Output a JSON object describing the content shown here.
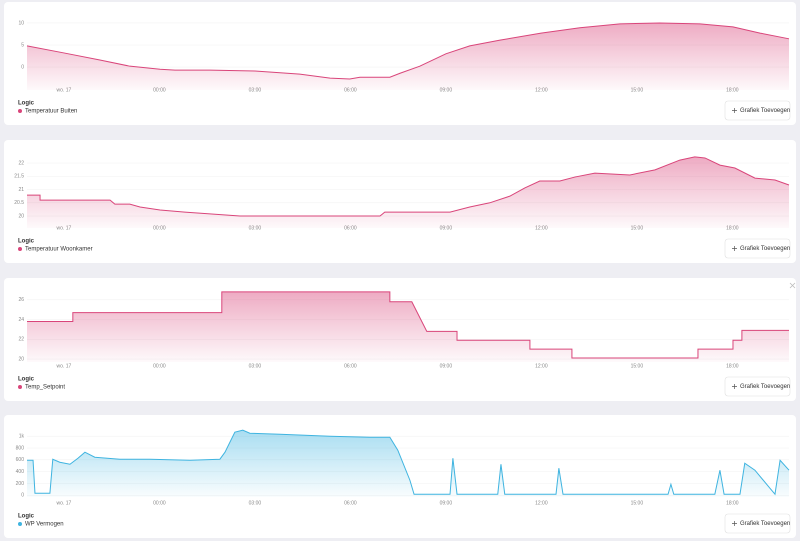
{
  "chart_data": [
    {
      "type": "area",
      "legend_title": "Logic",
      "button": "Grafiek Toevoegen",
      "grid": true,
      "xlim": [
        -1.16,
        22.78
      ],
      "ylim": [
        -5.2,
        11.8
      ],
      "xticks": [
        {
          "value": 0,
          "label": "wo. 17"
        },
        {
          "value": 3,
          "label": "00:00"
        },
        {
          "value": 6,
          "label": "03:00"
        },
        {
          "value": 9,
          "label": "06:00"
        },
        {
          "value": 12,
          "label": "09:00"
        },
        {
          "value": 15,
          "label": "12:00"
        },
        {
          "value": 18,
          "label": "15:00"
        },
        {
          "value": 21,
          "label": "18:00"
        }
      ],
      "yticks": [
        0,
        5,
        10
      ],
      "x": [
        -1.16,
        0,
        1.13,
        2.07,
        3.02,
        3.49,
        4.59,
        6,
        7.41,
        8.36,
        8.98,
        9.3,
        10.24,
        10.56,
        11.18,
        12,
        12.75,
        13.7,
        14.99,
        16.21,
        17.47,
        18.72,
        19.98,
        21.02,
        21.87,
        22.78
      ],
      "series": [
        {
          "name": "Temperatuur Buiten",
          "color": "#d9457a",
          "values": [
            4.8,
            3.2,
            1.6,
            0.2,
            -0.5,
            -0.7,
            -0.7,
            -0.9,
            -1.6,
            -2.5,
            -2.7,
            -2.3,
            -2.3,
            -1.4,
            0.2,
            3,
            4.8,
            6.1,
            7.7,
            8.9,
            9.8,
            10,
            9.8,
            9.1,
            7.7,
            6.4
          ]
        }
      ]
    },
    {
      "type": "area",
      "legend_title": "Logic",
      "button": "Grafiek Toevoegen",
      "grid": true,
      "xlim": [
        -1.16,
        22.78
      ],
      "ylim": [
        19.55,
        22.49
      ],
      "xticks": [
        {
          "value": 0,
          "label": "wo. 17"
        },
        {
          "value": 3,
          "label": "00:00"
        },
        {
          "value": 6,
          "label": "03:00"
        },
        {
          "value": 9,
          "label": "06:00"
        },
        {
          "value": 12,
          "label": "09:00"
        },
        {
          "value": 15,
          "label": "12:00"
        },
        {
          "value": 18,
          "label": "15:00"
        },
        {
          "value": 21,
          "label": "18:00"
        }
      ],
      "yticks": [
        20,
        20.5,
        21,
        21.5,
        22
      ],
      "x": [
        -1.16,
        -0.75,
        -0.75,
        1.45,
        1.6,
        2.07,
        2.39,
        3.02,
        3.8,
        5.53,
        9.93,
        10.08,
        12.13,
        12.75,
        13.38,
        14.01,
        14.48,
        14.95,
        15.58,
        16.05,
        16.68,
        17.78,
        18.57,
        19.35,
        19.82,
        20.14,
        20.61,
        21.08,
        21.71,
        22.34,
        22.78
      ],
      "series": [
        {
          "name": "Temperatuur Woonkamer",
          "color": "#d9457a",
          "values": [
            20.79,
            20.79,
            20.6,
            20.6,
            20.45,
            20.45,
            20.34,
            20.23,
            20.15,
            20,
            20,
            20.15,
            20.15,
            20.34,
            20.5,
            20.75,
            21.06,
            21.32,
            21.32,
            21.47,
            21.62,
            21.55,
            21.74,
            22.11,
            22.23,
            22.19,
            21.92,
            21.81,
            21.43,
            21.36,
            21.17
          ]
        }
      ]
    },
    {
      "type": "area",
      "legend_title": "Logic",
      "button": "Grafiek Toevoegen",
      "grid": true,
      "xlim": [
        -1.16,
        22.78
      ],
      "ylim": [
        19.7,
        27.5
      ],
      "xticks": [
        {
          "value": 0,
          "label": "wo. 17"
        },
        {
          "value": 3,
          "label": "00:00"
        },
        {
          "value": 6,
          "label": "03:00"
        },
        {
          "value": 9,
          "label": "06:00"
        },
        {
          "value": 12,
          "label": "09:00"
        },
        {
          "value": 15,
          "label": "12:00"
        },
        {
          "value": 18,
          "label": "15:00"
        },
        {
          "value": 21,
          "label": "18:00"
        }
      ],
      "yticks": [
        20,
        22,
        24,
        26
      ],
      "x": [
        -1.16,
        0.28,
        0.28,
        4.96,
        4.96,
        10.24,
        10.24,
        10.93,
        11.4,
        12.35,
        12.35,
        14.64,
        14.64,
        15.96,
        15.96,
        19.92,
        19.92,
        21.02,
        21.02,
        21.3,
        21.3,
        22.78
      ],
      "series": [
        {
          "name": "Temp_Setpoint",
          "color": "#d9457a",
          "values": [
            23.8,
            23.8,
            24.7,
            24.7,
            26.8,
            26.8,
            25.8,
            25.8,
            22.8,
            22.8,
            21.9,
            21.9,
            21,
            21,
            20.1,
            20.1,
            21,
            21,
            21.9,
            21.9,
            22.9,
            22.9
          ]
        }
      ]
    },
    {
      "type": "area",
      "legend_title": "Logic",
      "button": "Grafiek Toevoegen",
      "grid": true,
      "xlim": [
        -1.16,
        22.78
      ],
      "ylim": [
        -30,
        1190
      ],
      "xticks": [
        {
          "value": 0,
          "label": "wo. 17"
        },
        {
          "value": 3,
          "label": "00:00"
        },
        {
          "value": 6,
          "label": "03:00"
        },
        {
          "value": 9,
          "label": "06:00"
        },
        {
          "value": 12,
          "label": "09:00"
        },
        {
          "value": 15,
          "label": "12:00"
        },
        {
          "value": 18,
          "label": "15:00"
        },
        {
          "value": 21,
          "label": "18:00"
        }
      ],
      "yticks": [
        0,
        200,
        400,
        600,
        800,
        {
          "value": 1000,
          "label": "1k"
        }
      ],
      "x": [
        -1.16,
        -0.97,
        -0.91,
        -0.44,
        -0.35,
        -0.13,
        0.19,
        0.44,
        0.66,
        0.97,
        1.76,
        2.7,
        3.96,
        4.9,
        5.06,
        5.37,
        5.62,
        5.84,
        6.79,
        8.36,
        9.61,
        10.24,
        10.49,
        10.87,
        11,
        12.13,
        12.22,
        12.35,
        13.63,
        13.73,
        13.85,
        15.46,
        15.55,
        15.68,
        18.98,
        19.07,
        19.16,
        20.45,
        20.61,
        20.74,
        21.24,
        21.39,
        21.71,
        22.18,
        22.34,
        22.5,
        22.78
      ],
      "series": [
        {
          "name": "WP Vermogen",
          "color": "#3fb4e0",
          "values": [
            593,
            593,
            34,
            34,
            610,
            559,
            525,
            627,
            729,
            644,
            610,
            610,
            593,
            610,
            729,
            1068,
            1102,
            1051,
            1034,
            1000,
            983,
            983,
            763,
            254,
            17,
            17,
            627,
            17,
            17,
            525,
            17,
            17,
            458,
            17,
            17,
            186,
            17,
            17,
            424,
            17,
            17,
            542,
            424,
            119,
            17,
            593,
            424
          ]
        }
      ]
    }
  ]
}
